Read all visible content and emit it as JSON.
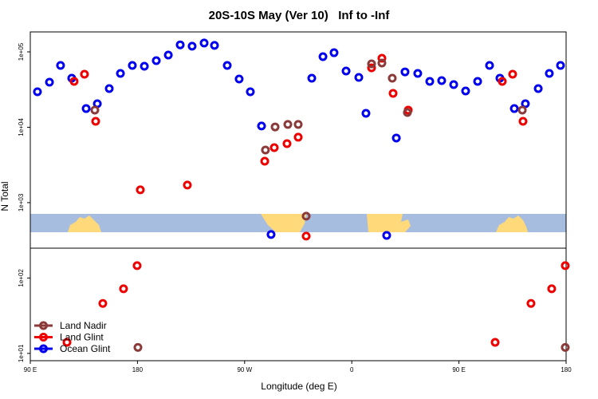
{
  "chart_data": {
    "type": "scatter",
    "title": "20S-10S May (Ver 10)   Inf to -Inf",
    "x_label": "Longitude (deg E)",
    "y_label": "N Total",
    "log_y": true,
    "legend": "lower left",
    "xlim": [
      90,
      540
    ],
    "ylim": [
      8,
      184000
    ],
    "xticks": [
      {
        "value": 90,
        "label": "90 E"
      },
      180,
      {
        "value": 270,
        "label": "90 W"
      },
      {
        "value": 360,
        "label": "0"
      },
      {
        "value": 450,
        "label": "90 E"
      },
      {
        "value": 540,
        "label": "180"
      }
    ],
    "yticks": [
      {
        "value": 10,
        "label": "1e+01"
      },
      {
        "value": 100,
        "label": "1e+02"
      },
      {
        "value": 1000,
        "label": "1e+03"
      },
      {
        "value": 10000,
        "label": "1e+04"
      },
      {
        "value": 100000,
        "label": "1e+05"
      }
    ],
    "series": [
      {
        "name": "Land Nadir",
        "color": "#8b3a3a",
        "x": [
          144.2,
          180.4,
          287.5,
          295.6,
          306.3,
          315.0,
          321.7,
          376.6,
          385.3,
          394.0,
          406.7,
          503.2,
          539.3
        ],
        "values": [
          16900,
          12,
          4990,
          10100,
          10900,
          10900,
          661,
          69300,
          71100,
          44700,
          15700,
          16900,
          12
        ]
      },
      {
        "name": "Land Glint",
        "color": "#ee0000",
        "x": [
          120.8,
          126.8,
          135.5,
          144.9,
          150.9,
          168.3,
          179.7,
          182.4,
          221.9,
          286.9,
          294.9,
          305.6,
          315.0,
          321.7,
          376.6,
          385.3,
          394.7,
          407.4,
          480.4,
          486.4,
          495.1,
          503.8,
          510.5,
          527.9,
          539.3
        ],
        "values": [
          14,
          40600,
          50600,
          12000,
          46,
          72,
          146,
          1480,
          1710,
          3550,
          5370,
          6070,
          7380,
          360,
          61400,
          82300,
          28200,
          16900,
          14,
          40600,
          50600,
          12000,
          46,
          72,
          146
        ]
      },
      {
        "name": "Ocean Glint",
        "color": "#0000ee",
        "x": [
          96.0,
          106.1,
          115.4,
          124.8,
          136.9,
          146.3,
          156.3,
          165.7,
          175.7,
          185.8,
          195.8,
          205.9,
          215.9,
          225.9,
          236.0,
          244.7,
          255.4,
          265.4,
          274.8,
          284.2,
          292.2,
          326.4,
          335.8,
          345.1,
          355.2,
          365.9,
          371.9,
          389.3,
          397.4,
          404.7,
          415.4,
          425.5,
          435.5,
          445.6,
          455.6,
          465.7,
          475.7,
          484.4,
          496.5,
          505.8,
          516.6,
          525.9,
          535.3
        ],
        "values": [
          29600,
          39600,
          66100,
          44700,
          17700,
          20500,
          32600,
          51800,
          66100,
          64500,
          76500,
          90700,
          124000,
          119000,
          131000,
          122000,
          66100,
          43700,
          29600,
          10400,
          378,
          44700,
          86400,
          97500,
          55700,
          45800,
          15300,
          368,
          7200,
          54300,
          51800,
          40600,
          41600,
          36800,
          30300,
          40600,
          66100,
          44700,
          17700,
          20500,
          32600,
          51800,
          66100
        ]
      }
    ]
  }
}
